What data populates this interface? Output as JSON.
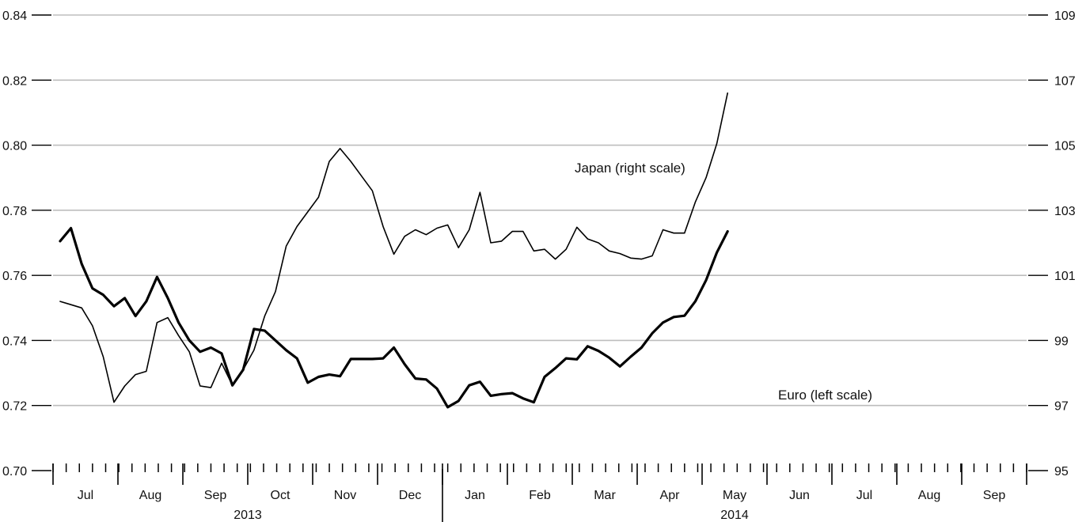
{
  "chart_data": {
    "type": "line",
    "title": "",
    "xlabel": "",
    "ylabel": "",
    "grid": "horizontal",
    "x_weeks": 74,
    "left_axis": {
      "ylim": [
        0.7,
        0.84
      ],
      "ticks": [
        0.7,
        0.72,
        0.74,
        0.76,
        0.78,
        0.8,
        0.82,
        0.84
      ],
      "tick_labels": [
        "0.70",
        "0.72",
        "0.74",
        "0.76",
        "0.78",
        "0.80",
        "0.82",
        "0.84"
      ]
    },
    "right_axis": {
      "ylim": [
        95,
        109
      ],
      "ticks": [
        95,
        97,
        99,
        101,
        103,
        105,
        107,
        109
      ],
      "tick_labels": [
        "95",
        "97",
        "99",
        "101",
        "103",
        "105",
        "107",
        "109"
      ]
    },
    "months": [
      {
        "label": "Jul",
        "start_week": 0,
        "end_week": 4
      },
      {
        "label": "Aug",
        "start_week": 4,
        "end_week": 8
      },
      {
        "label": "Sep",
        "start_week": 8,
        "end_week": 12
      },
      {
        "label": "Oct",
        "start_week": 12,
        "end_week": 16
      },
      {
        "label": "Nov",
        "start_week": 16,
        "end_week": 20
      },
      {
        "label": "Dec",
        "start_week": 20,
        "end_week": 24
      },
      {
        "label": "Jan",
        "start_week": 24,
        "end_week": 28
      },
      {
        "label": "Feb",
        "start_week": 28,
        "end_week": 32
      },
      {
        "label": "Mar",
        "start_week": 32,
        "end_week": 36
      },
      {
        "label": "Apr",
        "start_week": 36,
        "end_week": 40
      },
      {
        "label": "May",
        "start_week": 40,
        "end_week": 44
      },
      {
        "label": "Jun",
        "start_week": 44,
        "end_week": 48
      },
      {
        "label": "Jul",
        "start_week": 48,
        "end_week": 52
      },
      {
        "label": "Aug",
        "start_week": 52,
        "end_week": 56
      },
      {
        "label": "Sep",
        "start_week": 56,
        "end_week": 60
      }
    ],
    "years": [
      {
        "label": "2013",
        "start_week": 0,
        "end_week": 24
      },
      {
        "label": "2014",
        "start_week": 24,
        "end_week": 60
      }
    ],
    "series": [
      {
        "name": "Euro (left scale)",
        "axis": "left",
        "color": "#000000",
        "weight": "thick",
        "values": [
          0.7705,
          0.7745,
          0.7635,
          0.756,
          0.754,
          0.7505,
          0.753,
          0.7475,
          0.752,
          0.7595,
          0.753,
          0.7455,
          0.74,
          0.7365,
          0.7378,
          0.736,
          0.7262,
          0.731,
          0.7435,
          0.743,
          0.74,
          0.737,
          0.7345,
          0.727,
          0.7288,
          0.7295,
          0.729,
          0.7343,
          0.7343,
          0.7343,
          0.7345,
          0.7378,
          0.7327,
          0.7283,
          0.728,
          0.7252,
          0.7195,
          0.7214,
          0.7262,
          0.7273,
          0.723,
          0.7235,
          0.7238,
          0.7222,
          0.721,
          0.7288,
          0.7315,
          0.7345,
          0.7342,
          0.7382,
          0.7368,
          0.7347,
          0.732,
          0.735,
          0.7378,
          0.7422,
          0.7455,
          0.7472,
          0.7476,
          0.752,
          0.7585,
          0.767,
          0.7735
        ]
      },
      {
        "name": "Japan (right scale)",
        "axis": "right",
        "color": "#000000",
        "weight": "thin",
        "values": [
          100.2,
          100.1,
          100.0,
          99.45,
          98.5,
          97.1,
          97.6,
          97.95,
          98.05,
          99.55,
          99.7,
          99.15,
          98.65,
          97.6,
          97.55,
          98.3,
          97.62,
          98.1,
          98.7,
          99.75,
          100.5,
          101.9,
          102.5,
          102.95,
          103.4,
          104.5,
          104.9,
          104.5,
          104.05,
          103.6,
          102.5,
          101.65,
          102.2,
          102.4,
          102.25,
          102.45,
          102.55,
          101.85,
          102.4,
          103.55,
          102.0,
          102.05,
          102.35,
          102.35,
          101.75,
          101.8,
          101.5,
          101.8,
          102.48,
          102.12,
          102.0,
          101.75,
          101.67,
          101.53,
          101.5,
          101.6,
          102.4,
          102.3,
          102.3,
          103.25,
          104.0,
          105.05,
          106.6
        ]
      }
    ],
    "annotations": [
      {
        "text": "Japan (right scale)",
        "series": "Japan (right scale)"
      },
      {
        "text": "Euro (left scale)",
        "series": "Euro (left scale)"
      }
    ]
  }
}
